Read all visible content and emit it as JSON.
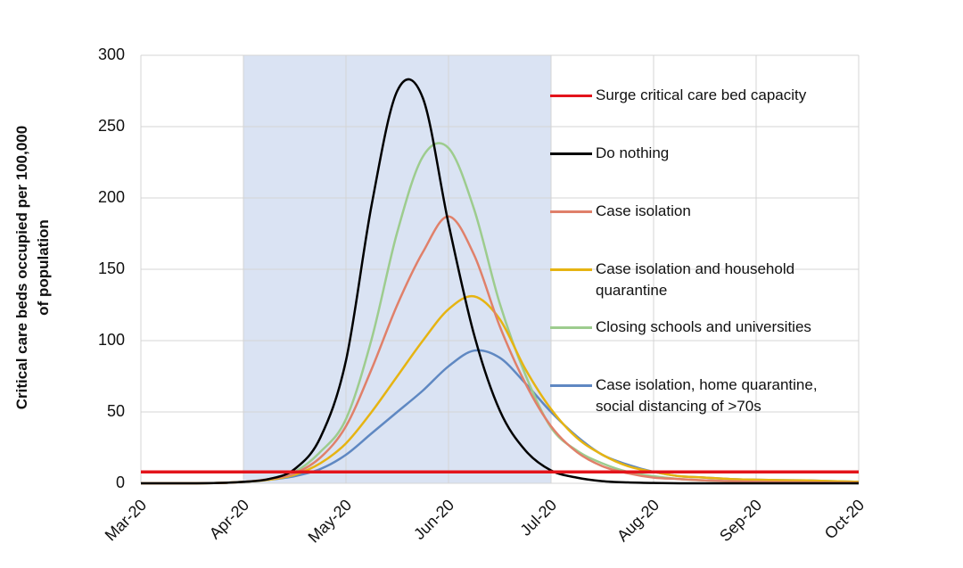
{
  "chart_data": {
    "type": "line",
    "y_label": "Critical care beds occupied per 100,000 of population",
    "x": [
      0,
      0.25,
      0.5,
      0.75,
      1,
      1.25,
      1.5,
      1.75,
      2,
      2.25,
      2.5,
      2.75,
      3,
      3.25,
      3.5,
      3.75,
      4,
      4.25,
      4.5,
      4.75,
      5,
      5.25,
      5.5,
      5.75,
      6,
      6.25,
      6.5,
      6.75,
      7
    ],
    "xlim": [
      0,
      7
    ],
    "xticks": [
      {
        "value": 0,
        "label": "Mar-20"
      },
      {
        "value": 1,
        "label": "Apr-20"
      },
      {
        "value": 2,
        "label": "May-20"
      },
      {
        "value": 3,
        "label": "Jun-20"
      },
      {
        "value": 4,
        "label": "Jul-20"
      },
      {
        "value": 5,
        "label": "Aug-20"
      },
      {
        "value": 6,
        "label": "Sep-20"
      },
      {
        "value": 7,
        "label": "Oct-20"
      }
    ],
    "ylim": [
      0,
      300
    ],
    "yticks": [
      0,
      50,
      100,
      150,
      200,
      250,
      300
    ],
    "grid": true,
    "shaded_xrange": [
      1,
      4
    ],
    "shade_color": "#dae3f3",
    "series": [
      {
        "name": "Surge critical care bed capacity",
        "color": "#e3141b",
        "values": [
          8,
          8,
          8,
          8,
          8,
          8,
          8,
          8,
          8,
          8,
          8,
          8,
          8,
          8,
          8,
          8,
          8,
          8,
          8,
          8,
          8,
          8,
          8,
          8,
          8,
          8,
          8,
          8,
          8
        ]
      },
      {
        "name": "Do nothing",
        "color": "#000000",
        "values": [
          0,
          0,
          0,
          0.2,
          1,
          3,
          10,
          32,
          86,
          195,
          275,
          270,
          182,
          104,
          51,
          23,
          9,
          4,
          1.5,
          0.6,
          0.2,
          0,
          0,
          0,
          0,
          0,
          0,
          0,
          0
        ]
      },
      {
        "name": "Case isolation",
        "color": "#e0806a",
        "values": [
          0,
          0,
          0,
          0.2,
          1,
          3,
          7,
          18,
          40,
          80,
          125,
          162,
          187,
          160,
          110,
          70,
          40,
          22,
          12,
          7,
          4,
          3,
          2,
          1.5,
          1,
          0.8,
          0.6,
          0.4,
          0.3
        ]
      },
      {
        "name": "Case isolation and household quarantine",
        "color": "#e6b412",
        "values": [
          0,
          0,
          0,
          0.2,
          1,
          2.5,
          6,
          14,
          28,
          50,
          75,
          100,
          122,
          131,
          115,
          80,
          52,
          32,
          20,
          12,
          8,
          5,
          4,
          3,
          2.5,
          2.2,
          2,
          1.5,
          1
        ]
      },
      {
        "name": "Closing schools and universities",
        "color": "#9dcc8e",
        "values": [
          0,
          0,
          0,
          0.2,
          1,
          3,
          8,
          22,
          45,
          101,
          176,
          229,
          235,
          192,
          126,
          76,
          39,
          23,
          14,
          8,
          5,
          3,
          2,
          1.5,
          1,
          0.8,
          0.5,
          0.3,
          0
        ]
      },
      {
        "name": "Case isolation, home quarantine, social distancing of >70s",
        "color": "#5f88c2",
        "values": [
          0,
          0,
          0,
          0.2,
          1,
          2.5,
          5,
          10,
          20,
          35,
          50,
          65,
          82,
          93,
          88,
          70,
          50,
          33,
          20,
          13,
          8,
          5,
          4,
          3,
          2.5,
          2.2,
          2,
          1.5,
          1
        ]
      }
    ]
  }
}
